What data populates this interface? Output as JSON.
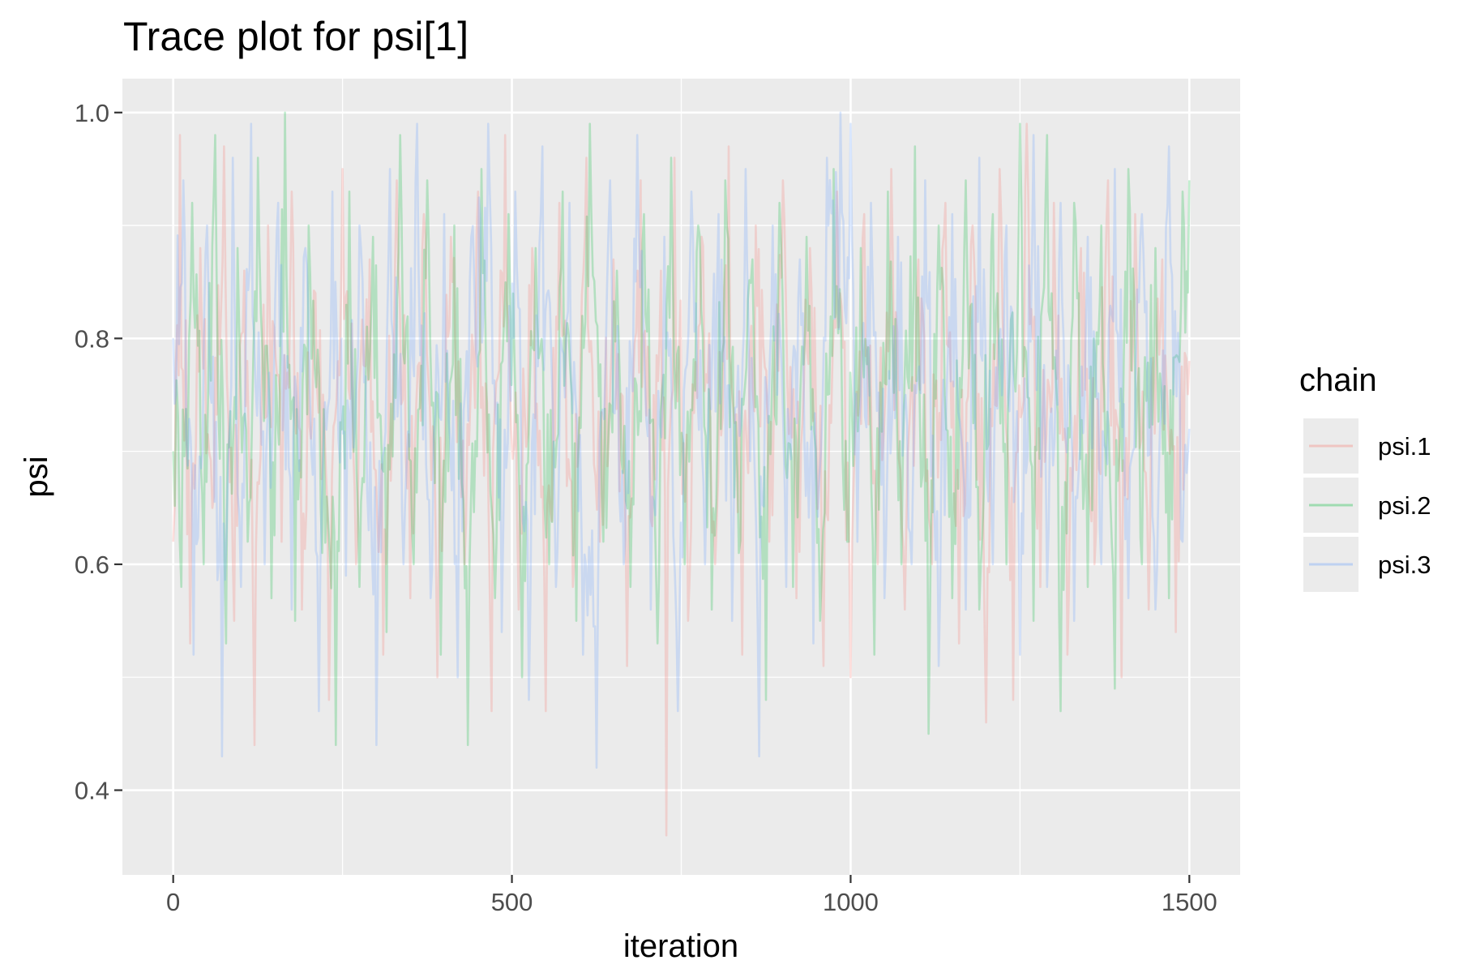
{
  "chart_data": {
    "type": "line",
    "title": "Trace plot for psi[1]",
    "xlabel": "iteration",
    "ylabel": "psi",
    "xlim": [
      -75,
      1575
    ],
    "ylim": [
      0.325,
      1.03
    ],
    "x_ticks": [
      0,
      500,
      1000,
      1500
    ],
    "x_tick_labels": [
      "0",
      "500",
      "1000",
      "1500"
    ],
    "y_ticks": [
      0.4,
      0.6,
      0.8,
      1.0
    ],
    "y_tick_labels": [
      "0.4",
      "0.6",
      "0.8",
      "1.0"
    ],
    "grid": true,
    "legend": {
      "title": "chain",
      "position": "right",
      "entries": [
        "psi.1",
        "psi.2",
        "psi.3"
      ]
    },
    "series": [
      {
        "name": "psi.1",
        "color": "#F8766D",
        "n_iterations": 1500,
        "x": [
          0,
          10,
          25,
          40,
          60,
          75,
          90,
          105,
          120,
          140,
          160,
          175,
          190,
          210,
          230,
          250,
          270,
          290,
          310,
          330,
          350,
          370,
          390,
          410,
          430,
          450,
          470,
          490,
          510,
          530,
          550,
          570,
          590,
          610,
          630,
          650,
          670,
          690,
          705,
          720,
          728,
          740,
          760,
          780,
          800,
          820,
          840,
          860,
          880,
          900,
          920,
          940,
          960,
          980,
          1000,
          1020,
          1040,
          1060,
          1080,
          1100,
          1120,
          1140,
          1160,
          1180,
          1200,
          1220,
          1240,
          1260,
          1280,
          1300,
          1320,
          1340,
          1360,
          1380,
          1400,
          1420,
          1440,
          1460,
          1480,
          1500
        ],
        "y": [
          0.62,
          0.98,
          0.53,
          0.88,
          0.66,
          0.97,
          0.55,
          0.86,
          0.44,
          0.9,
          0.62,
          0.93,
          0.56,
          0.84,
          0.48,
          0.95,
          0.6,
          0.87,
          0.52,
          0.94,
          0.57,
          0.91,
          0.5,
          0.89,
          0.6,
          0.93,
          0.47,
          0.98,
          0.56,
          0.88,
          0.47,
          0.92,
          0.58,
          0.96,
          0.62,
          0.87,
          0.51,
          0.94,
          0.64,
          0.86,
          0.36,
          0.96,
          0.55,
          0.89,
          0.6,
          0.97,
          0.52,
          0.9,
          0.62,
          0.94,
          0.57,
          0.88,
          0.51,
          0.93,
          0.5,
          0.91,
          0.6,
          0.95,
          0.56,
          0.87,
          0.6,
          0.92,
          0.53,
          0.9,
          0.46,
          0.95,
          0.48,
          0.99,
          0.58,
          0.92,
          0.52,
          0.88,
          0.6,
          0.94,
          0.5,
          0.91,
          0.56,
          0.87,
          0.54,
          0.78
        ]
      },
      {
        "name": "psi.2",
        "color": "#00BA38",
        "n_iterations": 1500,
        "x": [
          0,
          12,
          28,
          45,
          62,
          78,
          95,
          110,
          125,
          145,
          165,
          180,
          200,
          220,
          240,
          260,
          275,
          295,
          315,
          335,
          355,
          375,
          395,
          415,
          435,
          455,
          475,
          495,
          515,
          535,
          555,
          575,
          595,
          615,
          635,
          655,
          675,
          695,
          715,
          735,
          755,
          775,
          795,
          815,
          835,
          855,
          875,
          895,
          915,
          935,
          955,
          975,
          995,
          1015,
          1035,
          1055,
          1075,
          1095,
          1115,
          1130,
          1150,
          1170,
          1190,
          1210,
          1230,
          1250,
          1270,
          1290,
          1310,
          1330,
          1350,
          1370,
          1390,
          1410,
          1430,
          1450,
          1470,
          1490,
          1500
        ],
        "y": [
          0.7,
          0.58,
          0.92,
          0.6,
          0.98,
          0.53,
          0.88,
          0.62,
          0.96,
          0.57,
          1.0,
          0.55,
          0.9,
          0.61,
          0.44,
          0.93,
          0.58,
          0.89,
          0.54,
          0.98,
          0.6,
          0.94,
          0.52,
          0.9,
          0.44,
          0.95,
          0.57,
          0.91,
          0.5,
          0.88,
          0.6,
          0.93,
          0.55,
          0.99,
          0.62,
          0.86,
          0.58,
          0.91,
          0.53,
          0.96,
          0.6,
          0.9,
          0.56,
          0.94,
          0.61,
          0.87,
          0.48,
          0.92,
          0.58,
          0.89,
          0.55,
          0.95,
          0.62,
          0.88,
          0.52,
          0.93,
          0.6,
          0.97,
          0.45,
          0.9,
          0.57,
          0.94,
          0.56,
          0.91,
          0.6,
          0.99,
          0.55,
          0.98,
          0.47,
          0.92,
          0.58,
          0.9,
          0.49,
          0.95,
          0.6,
          0.88,
          0.57,
          0.93,
          0.94
        ]
      },
      {
        "name": "psi.3",
        "color": "#619CFF",
        "n_iterations": 1500,
        "x": [
          0,
          15,
          30,
          50,
          72,
          88,
          100,
          115,
          135,
          155,
          175,
          195,
          215,
          235,
          255,
          275,
          300,
          320,
          340,
          360,
          380,
          400,
          420,
          440,
          465,
          485,
          505,
          525,
          545,
          565,
          585,
          605,
          625,
          645,
          665,
          685,
          705,
          725,
          745,
          765,
          785,
          805,
          825,
          845,
          865,
          885,
          905,
          925,
          945,
          965,
          985,
          1000,
          1010,
          1030,
          1050,
          1070,
          1090,
          1110,
          1130,
          1150,
          1170,
          1190,
          1210,
          1230,
          1250,
          1270,
          1290,
          1310,
          1330,
          1350,
          1370,
          1390,
          1410,
          1430,
          1450,
          1470,
          1490,
          1500
        ],
        "y": [
          0.8,
          0.94,
          0.52,
          0.9,
          0.43,
          0.96,
          0.58,
          0.99,
          0.6,
          0.92,
          0.56,
          0.88,
          0.47,
          0.93,
          0.59,
          0.9,
          0.44,
          0.95,
          0.6,
          0.99,
          0.57,
          0.91,
          0.5,
          0.89,
          0.99,
          0.54,
          0.93,
          0.48,
          0.97,
          0.58,
          0.92,
          0.52,
          0.42,
          0.94,
          0.6,
          0.98,
          0.56,
          0.89,
          0.47,
          0.93,
          0.6,
          0.91,
          0.55,
          0.95,
          0.43,
          0.9,
          0.58,
          0.87,
          0.53,
          0.96,
          1.0,
          0.99,
          0.62,
          0.92,
          0.57,
          0.89,
          0.6,
          0.94,
          0.51,
          0.91,
          0.56,
          0.96,
          0.6,
          0.9,
          0.52,
          0.98,
          0.58,
          0.92,
          0.55,
          0.89,
          0.6,
          0.95,
          0.57,
          0.91,
          0.56,
          0.97,
          0.62,
          0.72
        ]
      }
    ]
  }
}
